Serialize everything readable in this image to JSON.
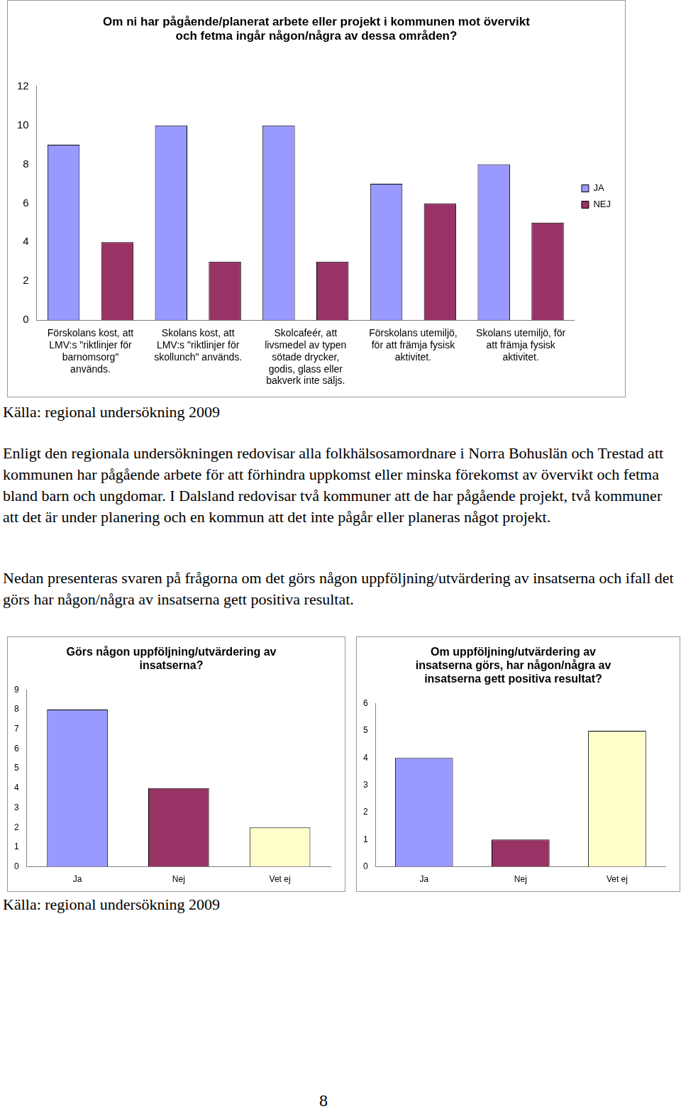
{
  "chart_data": [
    {
      "type": "bar",
      "title": [
        "Om ni har pågående/planerat arbete eller projekt i kommunen mot övervikt",
        "och fetma ingår någon/några av dessa områden?"
      ],
      "categories": [
        [
          "Förskolans kost, att",
          "LMV:s \"riktlinjer för",
          "barnomsorg\"",
          "används."
        ],
        [
          "Skolans kost, att",
          "LMV:s \"riktlinjer för",
          "skollunch\" används."
        ],
        [
          "Skolcafeér, att",
          "livsmedel av typen",
          "sötade drycker,",
          "godis, glass eller",
          "bakverk inte säljs."
        ],
        [
          "Förskolans utemiljö,",
          "för att främja fysisk",
          "aktivitet."
        ],
        [
          "Skolans utemiljö, för",
          "att främja fysisk",
          "aktivitet."
        ]
      ],
      "series": [
        {
          "name": "JA",
          "color": "#9999ff",
          "values": [
            9,
            10,
            10,
            7,
            8
          ]
        },
        {
          "name": "NEJ",
          "color": "#993366",
          "values": [
            4,
            3,
            3,
            6,
            5
          ]
        }
      ],
      "ylim": [
        0,
        12
      ],
      "yticks": [
        0,
        2,
        4,
        6,
        8,
        10,
        12
      ],
      "grid": false,
      "legend": "right"
    },
    {
      "type": "bar",
      "title": [
        "Görs någon uppföljning/utvärdering av",
        "insatserna?"
      ],
      "categories": [
        "Ja",
        "Nej",
        "Vet ej"
      ],
      "values": [
        8,
        4,
        2
      ],
      "colors": [
        "#9999ff",
        "#993366",
        "#ffffcc"
      ],
      "ylim": [
        0,
        9
      ],
      "yticks": [
        0,
        1,
        2,
        3,
        4,
        5,
        6,
        7,
        8,
        9
      ],
      "grid": false
    },
    {
      "type": "bar",
      "title": [
        "Om uppföljning/utvärdering av",
        "insatserna görs, har någon/några av",
        "insatserna gett positiva resultat?"
      ],
      "categories": [
        "Ja",
        "Nej",
        "Vet ej"
      ],
      "values": [
        4,
        1,
        5
      ],
      "colors": [
        "#9999ff",
        "#993366",
        "#ffffcc"
      ],
      "ylim": [
        0,
        6
      ],
      "yticks": [
        0,
        1,
        2,
        3,
        4,
        5,
        6
      ],
      "grid": false
    }
  ],
  "sources": [
    "Källa: regional undersökning 2009",
    "Källa: regional undersökning 2009"
  ],
  "paragraphs": [
    "Enligt den regionala undersökningen redovisar alla folkhälsosamordnare i Norra Bohuslän och Trestad att kommunen har pågående arbete för att förhindra uppkomst eller minska förekomst av övervikt och fetma bland barn och ungdomar. I Dalsland redovisar två kommuner att de har pågående projekt, två kommuner att det är under planering och en kommun att det inte pågår eller planeras något projekt.",
    "Nedan presenteras svaren på frågorna om det görs någon uppföljning/utvärdering av insatserna och ifall det görs har någon/några av insatserna gett positiva resultat."
  ],
  "page_number": "8"
}
